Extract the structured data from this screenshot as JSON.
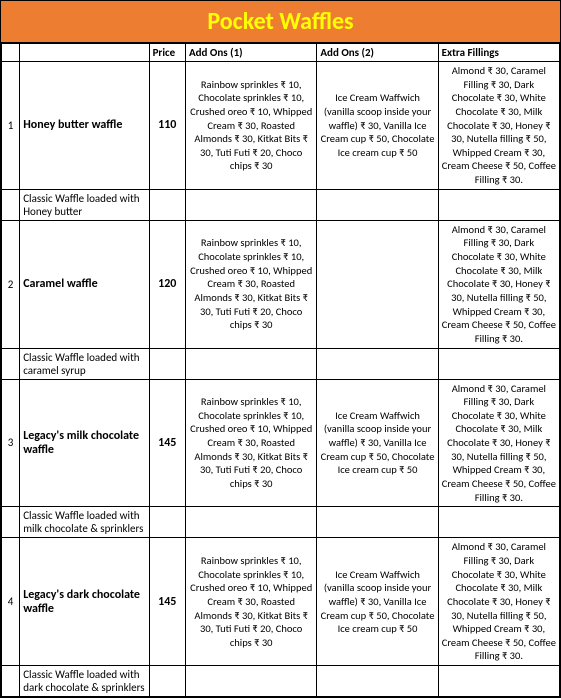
{
  "title": "Pocket Waffles",
  "headers": {
    "num": "",
    "name": "",
    "price": "Price",
    "add1": "Add Ons (1)",
    "add2": "Add Ons (2)",
    "extra": "Extra Fillings"
  },
  "addons1": "Rainbow sprinkles ₹ 10, Chocolate sprinkles ₹ 10, Crushed oreo ₹ 10, Whipped Cream ₹ 30, Roasted Almonds ₹ 30, Kitkat Bits ₹ 30, Tuti Futi ₹ 20, Choco chips ₹ 30",
  "addons2": "Ice Cream Waffwich (vanilla scoop inside your waffle) ₹ 30, Vanilla Ice Cream cup ₹ 50, Chocolate Ice cream cup ₹ 50",
  "extraFillings": "Almond ₹ 30, Caramel Filling ₹ 30, Dark Chocolate ₹ 30, White Chocolate ₹ 30, Milk Chocolate ₹ 30, Honey ₹ 30, Nutella filling ₹ 50, Whipped Cream ₹ 30, Cream Cheese ₹ 50, Coffee Filling ₹ 30.",
  "items": [
    {
      "num": "1",
      "name": "Honey butter waffle",
      "price": "110",
      "desc": "Classic Waffle loaded with Honey butter",
      "add2": true
    },
    {
      "num": "2",
      "name": "Caramel waffle",
      "price": "120",
      "desc": "Classic Waffle loaded with caramel syrup",
      "add2": false
    },
    {
      "num": "3",
      "name": "Legacy's milk chocolate waffle",
      "price": "145",
      "desc": "Classic Waffle loaded with milk chocolate & sprinklers",
      "add2": true
    },
    {
      "num": "4",
      "name": "Legacy's dark chocolate waffle",
      "price": "145",
      "desc": "Classic Waffle loaded with dark chocolate & sprinklers",
      "add2": true
    }
  ],
  "colors": {
    "header_bg": "#ed7d31",
    "title_text": "#ffff00",
    "border": "#000000",
    "background": "#ffffff"
  }
}
